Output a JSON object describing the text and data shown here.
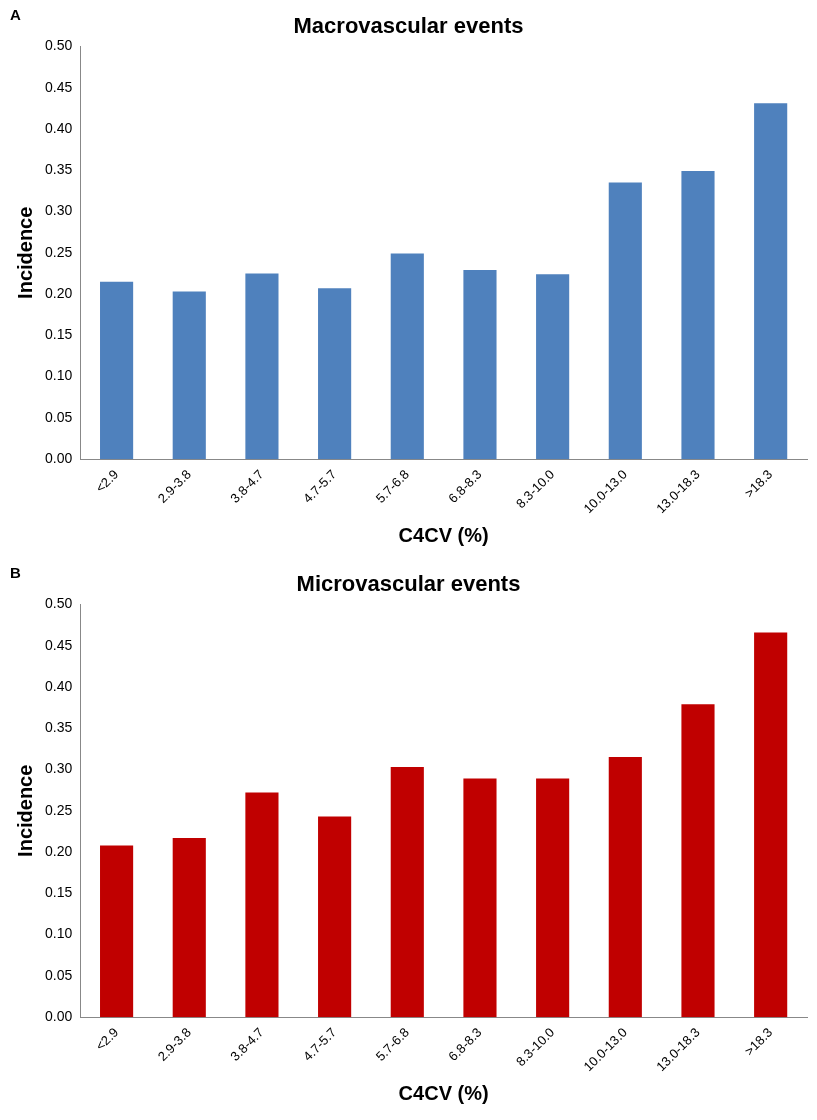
{
  "chart_data": [
    {
      "type": "bar",
      "title": "Macrovascular events",
      "xlabel": "C4CV (%)",
      "ylabel": "Incidence",
      "annotations": [
        "A"
      ],
      "categories": [
        "<2.9",
        "2.9-3.8",
        "3.8-4.7",
        "4.7-5.7",
        "5.7-6.8",
        "6.8-8.3",
        "8.3-10.0",
        "10.0-13.0",
        "13.0-18.3",
        ">18.3"
      ],
      "values": [
        0.215,
        0.203,
        0.225,
        0.207,
        0.249,
        0.229,
        0.224,
        0.335,
        0.349,
        0.431
      ],
      "color": "#4f81bd",
      "ylim": [
        0,
        0.5
      ],
      "yticks": [
        {
          "value": 0,
          "label": "0.00"
        },
        {
          "value": 0.05,
          "label": "0.05"
        },
        {
          "value": 0.1,
          "label": "0.10"
        },
        {
          "value": 0.15,
          "label": "0.15"
        },
        {
          "value": 0.2,
          "label": "0.20"
        },
        {
          "value": 0.25,
          "label": "0.25"
        },
        {
          "value": 0.3,
          "label": "0.30"
        },
        {
          "value": 0.35,
          "label": "0.35"
        },
        {
          "value": 0.4,
          "label": "0.40"
        },
        {
          "value": 0.45,
          "label": "0.45"
        },
        {
          "value": 0.5,
          "label": "0.50"
        }
      ],
      "grid": false,
      "legend": false
    },
    {
      "type": "bar",
      "title": "Microvascular events",
      "xlabel": "C4CV (%)",
      "ylabel": "Incidence",
      "annotations": [
        "B"
      ],
      "categories": [
        "<2.9",
        "2.9-3.8",
        "3.8-4.7",
        "4.7-5.7",
        "5.7-6.8",
        "6.8-8.3",
        "8.3-10.0",
        "10.0-13.0",
        "13.0-18.3",
        ">18.3"
      ],
      "values": [
        0.208,
        0.217,
        0.272,
        0.243,
        0.303,
        0.289,
        0.289,
        0.315,
        0.379,
        0.466
      ],
      "color": "#c00000",
      "ylim": [
        0,
        0.5
      ],
      "yticks": [
        {
          "value": 0,
          "label": "0.00"
        },
        {
          "value": 0.05,
          "label": "0.05"
        },
        {
          "value": 0.1,
          "label": "0.10"
        },
        {
          "value": 0.15,
          "label": "0.15"
        },
        {
          "value": 0.2,
          "label": "0.20"
        },
        {
          "value": 0.25,
          "label": "0.25"
        },
        {
          "value": 0.3,
          "label": "0.30"
        },
        {
          "value": 0.35,
          "label": "0.35"
        },
        {
          "value": 0.4,
          "label": "0.40"
        },
        {
          "value": 0.45,
          "label": "0.45"
        },
        {
          "value": 0.5,
          "label": "0.50"
        }
      ],
      "grid": false,
      "legend": false
    }
  ]
}
